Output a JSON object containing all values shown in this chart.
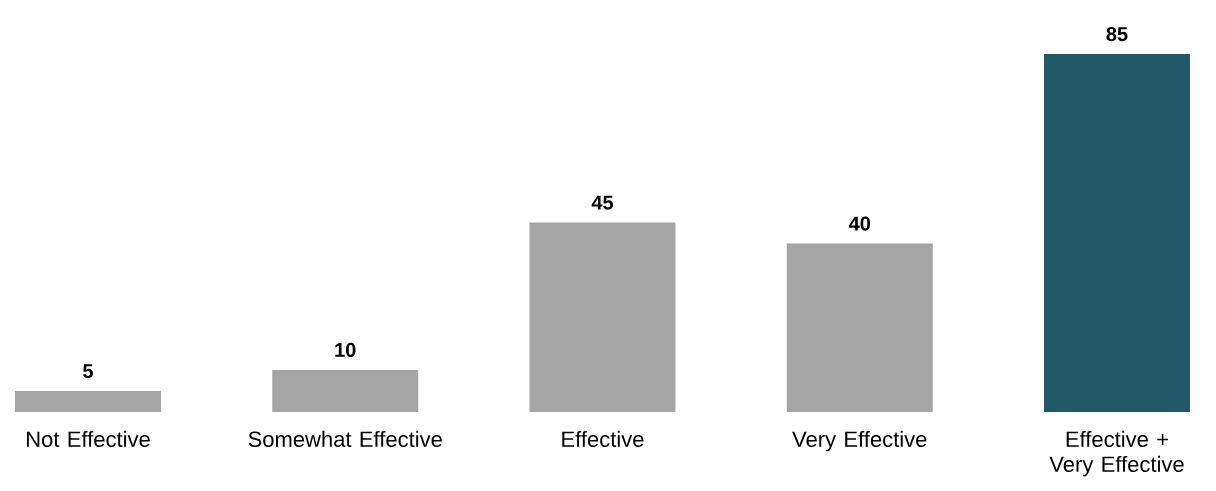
{
  "chart_data": {
    "type": "bar",
    "categories": [
      "Not Effective",
      "Somewhat Effective",
      "Effective",
      "Very Effective",
      "Effective + Very Effective"
    ],
    "values": [
      5,
      10,
      45,
      40,
      85
    ],
    "colors": [
      "#a5a5a5",
      "#a5a5a5",
      "#a5a5a5",
      "#a5a5a5",
      "#215968"
    ],
    "data_labels": true
  }
}
